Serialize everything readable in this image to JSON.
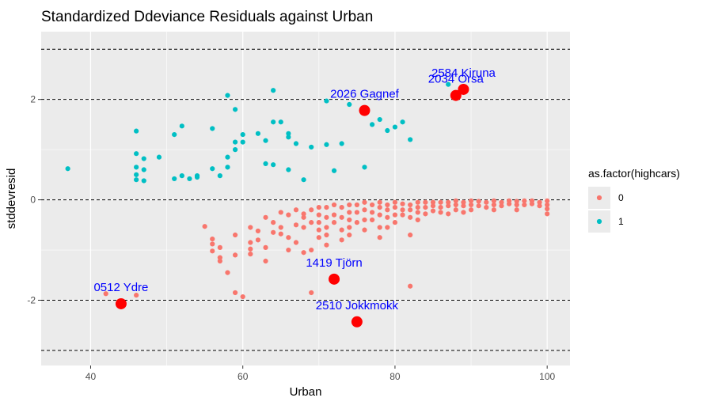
{
  "chart_data": {
    "type": "scatter",
    "title": "Standardized Ddeviance Residuals against Urban",
    "xlabel": "Urban",
    "ylabel": "stddevresid",
    "xlim": [
      33.5,
      103.0
    ],
    "ylim": [
      -3.3,
      3.35
    ],
    "x_ticks": [
      40,
      60,
      80,
      100
    ],
    "y_ticks": [
      -2,
      0,
      2
    ],
    "y_tick_labels": [
      "-2",
      "0",
      "2"
    ],
    "grid": true,
    "reference_lines": [
      -3,
      -2,
      0,
      2,
      3
    ],
    "legend": {
      "title": "as.factor(highcars)",
      "position": "right",
      "entries": [
        {
          "label": "0",
          "color": "#F8766D"
        },
        {
          "label": "1",
          "color": "#00BFC4"
        }
      ]
    },
    "series": [
      {
        "name": "0",
        "color": "#F8766D",
        "points": [
          [
            42.0,
            -1.87
          ],
          [
            46.0,
            -1.9
          ],
          [
            55.0,
            -0.53
          ],
          [
            56.0,
            -0.78
          ],
          [
            56.0,
            -0.88
          ],
          [
            56.0,
            -1.02
          ],
          [
            57.0,
            -1.15
          ],
          [
            57.0,
            -1.22
          ],
          [
            57.0,
            -0.95
          ],
          [
            58.0,
            -1.45
          ],
          [
            59.0,
            -0.7
          ],
          [
            59.0,
            -1.1
          ],
          [
            59.0,
            -1.85
          ],
          [
            60.0,
            -1.93
          ],
          [
            61.0,
            -0.55
          ],
          [
            61.0,
            -0.85
          ],
          [
            61.0,
            -0.98
          ],
          [
            61.0,
            -1.08
          ],
          [
            62.0,
            -0.62
          ],
          [
            62.0,
            -0.8
          ],
          [
            63.0,
            -0.95
          ],
          [
            63.0,
            -1.22
          ],
          [
            63.0,
            -0.35
          ],
          [
            64.0,
            -0.45
          ],
          [
            64.0,
            -0.65
          ],
          [
            65.0,
            -0.25
          ],
          [
            65.0,
            -0.55
          ],
          [
            65.0,
            -0.68
          ],
          [
            66.0,
            -0.3
          ],
          [
            66.0,
            -0.75
          ],
          [
            66.0,
            -1.0
          ],
          [
            67.0,
            -0.2
          ],
          [
            67.0,
            -0.5
          ],
          [
            67.0,
            -0.85
          ],
          [
            68.0,
            -0.28
          ],
          [
            68.0,
            -0.55
          ],
          [
            68.0,
            -0.35
          ],
          [
            68.0,
            -1.05
          ],
          [
            69.0,
            -0.2
          ],
          [
            69.0,
            -0.45
          ],
          [
            69.0,
            -1.0
          ],
          [
            69.0,
            -1.85
          ],
          [
            70.0,
            -0.15
          ],
          [
            70.0,
            -0.3
          ],
          [
            70.0,
            -0.45
          ],
          [
            70.0,
            -0.6
          ],
          [
            70.0,
            -0.75
          ],
          [
            71.0,
            -0.15
          ],
          [
            71.0,
            -0.35
          ],
          [
            71.0,
            -0.55
          ],
          [
            71.0,
            -0.7
          ],
          [
            71.0,
            -0.9
          ],
          [
            72.0,
            -0.1
          ],
          [
            72.0,
            -0.3
          ],
          [
            72.0,
            -0.45
          ],
          [
            73.0,
            -0.15
          ],
          [
            73.0,
            -0.35
          ],
          [
            73.0,
            -0.6
          ],
          [
            73.0,
            -0.8
          ],
          [
            74.0,
            -0.1
          ],
          [
            74.0,
            -0.25
          ],
          [
            74.0,
            -0.4
          ],
          [
            74.0,
            -0.55
          ],
          [
            74.0,
            -0.7
          ],
          [
            75.0,
            -0.1
          ],
          [
            75.0,
            -0.25
          ],
          [
            75.0,
            -0.45
          ],
          [
            76.0,
            -0.05
          ],
          [
            76.0,
            -0.2
          ],
          [
            76.0,
            -0.4
          ],
          [
            76.0,
            -0.6
          ],
          [
            77.0,
            -0.1
          ],
          [
            77.0,
            -0.25
          ],
          [
            77.0,
            -0.4
          ],
          [
            78.0,
            -0.05
          ],
          [
            78.0,
            -0.15
          ],
          [
            78.0,
            -0.3
          ],
          [
            78.0,
            -0.55
          ],
          [
            78.0,
            -0.75
          ],
          [
            79.0,
            -0.1
          ],
          [
            79.0,
            -0.2
          ],
          [
            79.0,
            -0.35
          ],
          [
            79.0,
            -0.55
          ],
          [
            80.0,
            -0.05
          ],
          [
            80.0,
            -0.15
          ],
          [
            80.0,
            -0.3
          ],
          [
            80.0,
            -0.45
          ],
          [
            81.0,
            -0.08
          ],
          [
            81.0,
            -0.2
          ],
          [
            81.0,
            -0.3
          ],
          [
            82.0,
            -0.1
          ],
          [
            82.0,
            -0.2
          ],
          [
            82.0,
            -0.35
          ],
          [
            82.0,
            -0.7
          ],
          [
            82.0,
            -1.72
          ],
          [
            83.0,
            -0.05
          ],
          [
            83.0,
            -0.15
          ],
          [
            83.0,
            -0.25
          ],
          [
            83.0,
            -0.4
          ],
          [
            84.0,
            -0.05
          ],
          [
            84.0,
            -0.15
          ],
          [
            84.0,
            -0.28
          ],
          [
            85.0,
            -0.05
          ],
          [
            85.0,
            -0.12
          ],
          [
            85.0,
            -0.22
          ],
          [
            86.0,
            -0.05
          ],
          [
            86.0,
            -0.15
          ],
          [
            86.0,
            -0.25
          ],
          [
            87.0,
            -0.05
          ],
          [
            87.0,
            -0.12
          ],
          [
            87.0,
            -0.28
          ],
          [
            88.0,
            -0.02
          ],
          [
            88.0,
            -0.1
          ],
          [
            88.0,
            -0.2
          ],
          [
            89.0,
            -0.05
          ],
          [
            89.0,
            -0.12
          ],
          [
            89.0,
            -0.25
          ],
          [
            90.0,
            -0.02
          ],
          [
            90.0,
            -0.1
          ],
          [
            90.0,
            -0.2
          ],
          [
            91.0,
            -0.03
          ],
          [
            91.0,
            -0.12
          ],
          [
            92.0,
            -0.05
          ],
          [
            92.0,
            -0.15
          ],
          [
            93.0,
            -0.02
          ],
          [
            93.0,
            -0.1
          ],
          [
            93.0,
            -0.2
          ],
          [
            94.0,
            -0.05
          ],
          [
            94.0,
            -0.12
          ],
          [
            95.0,
            -0.02
          ],
          [
            95.0,
            -0.08
          ],
          [
            96.0,
            -0.03
          ],
          [
            96.0,
            -0.1
          ],
          [
            96.0,
            -0.2
          ],
          [
            97.0,
            -0.02
          ],
          [
            97.0,
            -0.1
          ],
          [
            98.0,
            -0.02
          ],
          [
            98.0,
            -0.08
          ],
          [
            99.0,
            -0.05
          ],
          [
            99.0,
            -0.12
          ],
          [
            100.0,
            -0.02
          ],
          [
            100.0,
            -0.1
          ],
          [
            100.0,
            -0.18
          ],
          [
            100.0,
            -0.28
          ]
        ]
      },
      {
        "name": "1",
        "color": "#00BFC4",
        "points": [
          [
            37.0,
            0.62
          ],
          [
            46.0,
            1.37
          ],
          [
            46.0,
            0.92
          ],
          [
            46.0,
            0.65
          ],
          [
            46.0,
            0.5
          ],
          [
            46.0,
            0.4
          ],
          [
            47.0,
            0.82
          ],
          [
            47.0,
            0.6
          ],
          [
            47.0,
            0.38
          ],
          [
            49.0,
            0.85
          ],
          [
            51.0,
            1.3
          ],
          [
            51.0,
            0.42
          ],
          [
            52.0,
            1.47
          ],
          [
            52.0,
            0.48
          ],
          [
            53.0,
            0.42
          ],
          [
            54.0,
            0.45
          ],
          [
            54.0,
            0.48
          ],
          [
            56.0,
            1.42
          ],
          [
            56.0,
            0.62
          ],
          [
            57.0,
            0.48
          ],
          [
            58.0,
            2.08
          ],
          [
            58.0,
            0.85
          ],
          [
            58.0,
            0.65
          ],
          [
            59.0,
            1.8
          ],
          [
            59.0,
            1.15
          ],
          [
            59.0,
            1.0
          ],
          [
            60.0,
            1.3
          ],
          [
            60.0,
            1.15
          ],
          [
            62.0,
            1.32
          ],
          [
            63.0,
            1.18
          ],
          [
            63.0,
            0.72
          ],
          [
            64.0,
            1.55
          ],
          [
            64.0,
            0.7
          ],
          [
            64.0,
            2.18
          ],
          [
            65.0,
            1.55
          ],
          [
            66.0,
            1.32
          ],
          [
            66.0,
            1.25
          ],
          [
            66.0,
            0.6
          ],
          [
            67.0,
            1.12
          ],
          [
            68.0,
            0.4
          ],
          [
            69.0,
            1.05
          ],
          [
            71.0,
            1.1
          ],
          [
            71.0,
            1.97
          ],
          [
            72.0,
            0.58
          ],
          [
            73.0,
            1.12
          ],
          [
            74.0,
            1.9
          ],
          [
            76.0,
            0.65
          ],
          [
            77.0,
            1.5
          ],
          [
            78.0,
            1.6
          ],
          [
            79.0,
            1.38
          ],
          [
            80.0,
            1.45
          ],
          [
            81.0,
            1.55
          ],
          [
            82.0,
            1.2
          ],
          [
            87.0,
            2.3
          ]
        ]
      }
    ],
    "highlighted": [
      {
        "x": 44.0,
        "y": -2.07,
        "label": "0512 Ydre"
      },
      {
        "x": 72.0,
        "y": -1.58,
        "label": "1419 Tjörn"
      },
      {
        "x": 75.0,
        "y": -2.43,
        "label": "2510 Jokkmokk"
      },
      {
        "x": 76.0,
        "y": 1.78,
        "label": "2026 Gagnef"
      },
      {
        "x": 88.0,
        "y": 2.08,
        "label": "2034 Orsa"
      },
      {
        "x": 89.0,
        "y": 2.2,
        "label": "2584 Kiruna"
      }
    ],
    "highlight_color": "#FF0000",
    "annotation_color": "#0000FF"
  }
}
